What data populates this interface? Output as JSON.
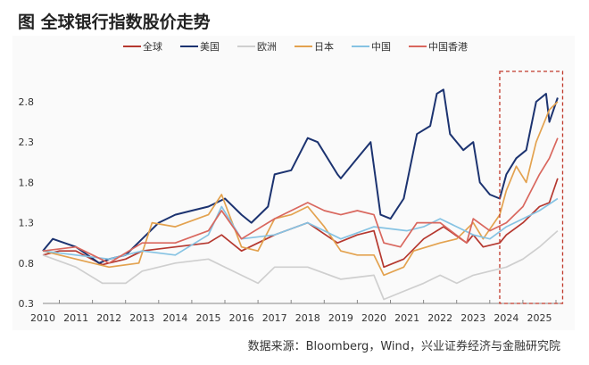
{
  "chart_data": {
    "type": "line",
    "title": "图 全球银行指数股价走势",
    "xlabel": "",
    "ylabel": "",
    "xlim": [
      2010,
      2025.7
    ],
    "ylim": [
      0.3,
      3.05
    ],
    "yticks": [
      "0.3",
      "0.8",
      "1.3",
      "1.8",
      "2.3",
      "2.8"
    ],
    "xticks": [
      "2010",
      "2011",
      "2012",
      "2013",
      "2014",
      "2015",
      "2016",
      "2017",
      "2018",
      "2019",
      "2020",
      "2021",
      "2022",
      "2023",
      "2024",
      "2025"
    ],
    "legend_position": "top",
    "grid": false,
    "highlight": {
      "x_range": [
        2023.8,
        2025.7
      ],
      "color": "#c0392b",
      "style": "dashed"
    },
    "series": [
      {
        "name": "全球",
        "color": "#b5382f",
        "x": [
          2010,
          2010.5,
          2011,
          2011.8,
          2012.5,
          2013,
          2014,
          2015,
          2015.4,
          2016,
          2017,
          2018,
          2018.9,
          2019.5,
          2020,
          2020.3,
          2020.9,
          2021.5,
          2022.1,
          2022.8,
          2023,
          2023.3,
          2023.8,
          2024,
          2024.5,
          2025,
          2025.3,
          2025.55
        ],
        "y": [
          0.9,
          0.95,
          0.95,
          0.78,
          0.85,
          0.95,
          1.0,
          1.05,
          1.15,
          0.95,
          1.15,
          1.3,
          1.05,
          1.15,
          1.2,
          0.75,
          0.85,
          1.1,
          1.25,
          1.05,
          1.15,
          1.0,
          1.05,
          1.15,
          1.3,
          1.5,
          1.55,
          1.85
        ]
      },
      {
        "name": "美国",
        "color": "#1c3370",
        "x": [
          2010,
          2010.3,
          2011,
          2011.7,
          2012,
          2012.5,
          2013,
          2013.5,
          2014,
          2014.5,
          2015,
          2015.5,
          2016,
          2016.3,
          2016.8,
          2017,
          2017.5,
          2018,
          2018.3,
          2018.9,
          2019,
          2019.5,
          2019.9,
          2020.2,
          2020.5,
          2020.9,
          2021,
          2021.3,
          2021.7,
          2021.9,
          2022.1,
          2022.3,
          2022.7,
          2023,
          2023.2,
          2023.5,
          2023.8,
          2024,
          2024.3,
          2024.6,
          2024.9,
          2025.2,
          2025.3,
          2025.55
        ],
        "y": [
          0.95,
          1.1,
          1.0,
          0.8,
          0.85,
          0.9,
          1.1,
          1.3,
          1.4,
          1.45,
          1.5,
          1.6,
          1.4,
          1.3,
          1.5,
          1.9,
          1.95,
          2.35,
          2.3,
          1.9,
          1.85,
          2.1,
          2.3,
          1.4,
          1.35,
          1.6,
          1.8,
          2.4,
          2.5,
          2.9,
          2.95,
          2.4,
          2.2,
          2.3,
          1.8,
          1.65,
          1.6,
          1.9,
          2.1,
          2.2,
          2.8,
          2.9,
          2.55,
          2.85
        ]
      },
      {
        "name": "欧洲",
        "color": "#cfcfcf",
        "x": [
          2010,
          2011,
          2011.8,
          2012.5,
          2013,
          2014,
          2015,
          2016,
          2016.5,
          2017,
          2018,
          2019,
          2020,
          2020.3,
          2020.9,
          2021.5,
          2022,
          2022.5,
          2023,
          2024,
          2024.5,
          2025,
          2025.55
        ],
        "y": [
          0.9,
          0.75,
          0.55,
          0.55,
          0.7,
          0.8,
          0.85,
          0.65,
          0.55,
          0.75,
          0.75,
          0.6,
          0.65,
          0.35,
          0.45,
          0.55,
          0.65,
          0.55,
          0.65,
          0.75,
          0.85,
          1.0,
          1.2
        ]
      },
      {
        "name": "日本",
        "color": "#e3a24f",
        "x": [
          2010,
          2011,
          2012,
          2012.9,
          2013.3,
          2014,
          2015,
          2015.4,
          2016,
          2016.5,
          2017,
          2017.5,
          2018,
          2018.5,
          2019,
          2019.5,
          2020,
          2020.3,
          2020.9,
          2021.2,
          2022,
          2022.5,
          2023,
          2023.3,
          2023.8,
          2024,
          2024.3,
          2024.6,
          2024.9,
          2025.1,
          2025.3,
          2025.55
        ],
        "y": [
          0.95,
          0.85,
          0.75,
          0.8,
          1.3,
          1.25,
          1.4,
          1.65,
          1.0,
          0.95,
          1.35,
          1.4,
          1.5,
          1.25,
          0.95,
          0.9,
          0.9,
          0.65,
          0.75,
          0.95,
          1.05,
          1.1,
          1.3,
          1.1,
          1.4,
          1.7,
          2.0,
          1.8,
          2.3,
          2.5,
          2.7,
          2.8
        ]
      },
      {
        "name": "中国",
        "color": "#86c3e3",
        "x": [
          2010,
          2011,
          2012,
          2013,
          2014,
          2015,
          2015.4,
          2016,
          2017,
          2018,
          2019,
          2020,
          2021,
          2021.5,
          2022,
          2022.5,
          2023,
          2023.5,
          2024,
          2024.5,
          2025,
          2025.55
        ],
        "y": [
          0.95,
          0.9,
          0.85,
          0.95,
          0.9,
          1.15,
          1.5,
          1.1,
          1.15,
          1.3,
          1.1,
          1.25,
          1.2,
          1.25,
          1.35,
          1.25,
          1.15,
          1.1,
          1.25,
          1.35,
          1.45,
          1.6
        ]
      },
      {
        "name": "中国香港",
        "color": "#d9675e",
        "x": [
          2010,
          2011,
          2012,
          2013,
          2014,
          2015,
          2015.4,
          2016,
          2017,
          2018,
          2018.5,
          2019,
          2019.5,
          2020,
          2020.3,
          2020.8,
          2021.3,
          2022,
          2022.8,
          2023,
          2023.5,
          2024,
          2024.5,
          2025,
          2025.3,
          2025.55
        ],
        "y": [
          0.95,
          1.0,
          0.8,
          1.05,
          1.05,
          1.2,
          1.45,
          1.1,
          1.35,
          1.55,
          1.45,
          1.4,
          1.45,
          1.4,
          1.05,
          1.0,
          1.3,
          1.3,
          1.05,
          1.35,
          1.2,
          1.3,
          1.5,
          1.9,
          2.1,
          2.35
        ]
      }
    ]
  },
  "source": "数据来源：Bloomberg，Wind，兴业证券经济与金融研究院"
}
